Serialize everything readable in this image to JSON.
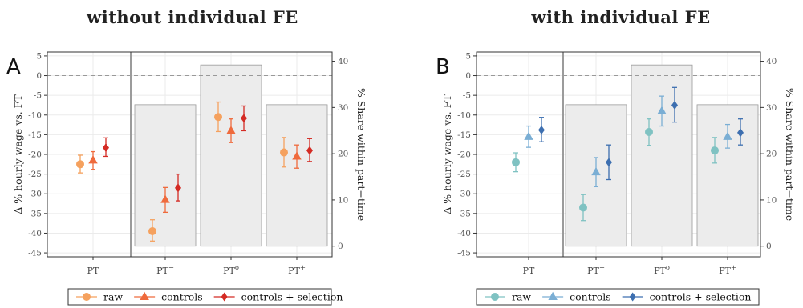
{
  "chart_data": [
    {
      "type": "scatter",
      "panel_label": "A",
      "title": "without individual FE",
      "ylabel": "Δ % hourly wage vs. FT",
      "y2label": "% Share within part−time",
      "ylim": [
        -46,
        6
      ],
      "yticks": [
        5,
        0,
        -5,
        -10,
        -15,
        -20,
        -25,
        -30,
        -35,
        -40,
        -45
      ],
      "y2lim": [
        -2.3,
        42
      ],
      "y2ticks": [
        0,
        10,
        20,
        30,
        40
      ],
      "categories": [
        "PT",
        "PT−",
        "PT°",
        "PT+"
      ],
      "category_display": [
        {
          "base": "PT",
          "sup": ""
        },
        {
          "base": "PT",
          "sup": "−"
        },
        {
          "base": "PT",
          "sup": "o"
        },
        {
          "base": "PT",
          "sup": "+"
        }
      ],
      "reference_line": 0,
      "separator_after_category": "PT",
      "share_bars": [
        {
          "category": "PT−",
          "value": 30.6
        },
        {
          "category": "PT°",
          "value": 39.2
        },
        {
          "category": "PT+",
          "value": 30.6
        }
      ],
      "series": [
        {
          "name": "raw",
          "color": "#f5a15e",
          "marker": "circle",
          "values": [
            -22.5,
            -39.5,
            -10.5,
            -19.5
          ],
          "lower": [
            -24.7,
            -42.0,
            -14.2,
            -23.2
          ],
          "upper": [
            -20.2,
            -36.6,
            -6.7,
            -15.7
          ]
        },
        {
          "name": "controls",
          "color": "#ef6a3c",
          "marker": "triangle",
          "values": [
            -21.5,
            -31.5,
            -14.0,
            -20.5
          ],
          "lower": [
            -23.8,
            -34.7,
            -17.0,
            -23.5
          ],
          "upper": [
            -19.3,
            -28.4,
            -11.0,
            -17.6
          ]
        },
        {
          "name": "controls + selection",
          "color": "#d42b24",
          "marker": "diamond",
          "values": [
            -18.3,
            -28.5,
            -10.8,
            -19.0
          ],
          "lower": [
            -20.5,
            -31.8,
            -14.0,
            -21.8
          ],
          "upper": [
            -15.8,
            -25.0,
            -7.7,
            -16.0
          ]
        }
      ],
      "legend": {
        "position": "bottom",
        "entries": [
          "raw",
          "controls",
          "controls + selection"
        ]
      },
      "grid": true
    },
    {
      "type": "scatter",
      "panel_label": "B",
      "title": "with individual FE",
      "ylabel": "Δ % hourly wage vs. FT",
      "y2label": "% Share within part−time",
      "ylim": [
        -46,
        6
      ],
      "yticks": [
        5,
        0,
        -5,
        -10,
        -15,
        -20,
        -25,
        -30,
        -35,
        -40,
        -45
      ],
      "y2lim": [
        -2.3,
        42
      ],
      "y2ticks": [
        0,
        10,
        20,
        30,
        40
      ],
      "categories": [
        "PT",
        "PT−",
        "PT°",
        "PT+"
      ],
      "category_display": [
        {
          "base": "PT",
          "sup": ""
        },
        {
          "base": "PT",
          "sup": "−"
        },
        {
          "base": "PT",
          "sup": "o"
        },
        {
          "base": "PT",
          "sup": "+"
        }
      ],
      "reference_line": 0,
      "separator_after_category": "PT",
      "share_bars": [
        {
          "category": "PT−",
          "value": 30.6
        },
        {
          "category": "PT°",
          "value": 39.2
        },
        {
          "category": "PT+",
          "value": 30.6
        }
      ],
      "series": [
        {
          "name": "raw",
          "color": "#7fc2c2",
          "marker": "circle",
          "values": [
            -22.0,
            -33.5,
            -14.3,
            -19.0
          ],
          "lower": [
            -24.4,
            -36.8,
            -17.7,
            -22.2
          ],
          "upper": [
            -19.6,
            -30.2,
            -11.0,
            -15.7
          ]
        },
        {
          "name": "controls",
          "color": "#7aaed4",
          "marker": "triangle",
          "values": [
            -15.5,
            -24.5,
            -9.0,
            -15.5
          ],
          "lower": [
            -18.2,
            -28.2,
            -12.8,
            -18.4
          ],
          "upper": [
            -12.8,
            -20.8,
            -5.2,
            -12.4
          ]
        },
        {
          "name": "controls + selection",
          "color": "#3d6fb0",
          "marker": "diamond",
          "values": [
            -13.8,
            -22.0,
            -7.5,
            -14.5
          ],
          "lower": [
            -16.8,
            -26.4,
            -11.8,
            -17.6
          ],
          "upper": [
            -10.6,
            -17.6,
            -3.0,
            -11.0
          ]
        }
      ],
      "legend": {
        "position": "bottom",
        "entries": [
          "raw",
          "controls",
          "controls + selection"
        ]
      },
      "grid": true
    }
  ]
}
